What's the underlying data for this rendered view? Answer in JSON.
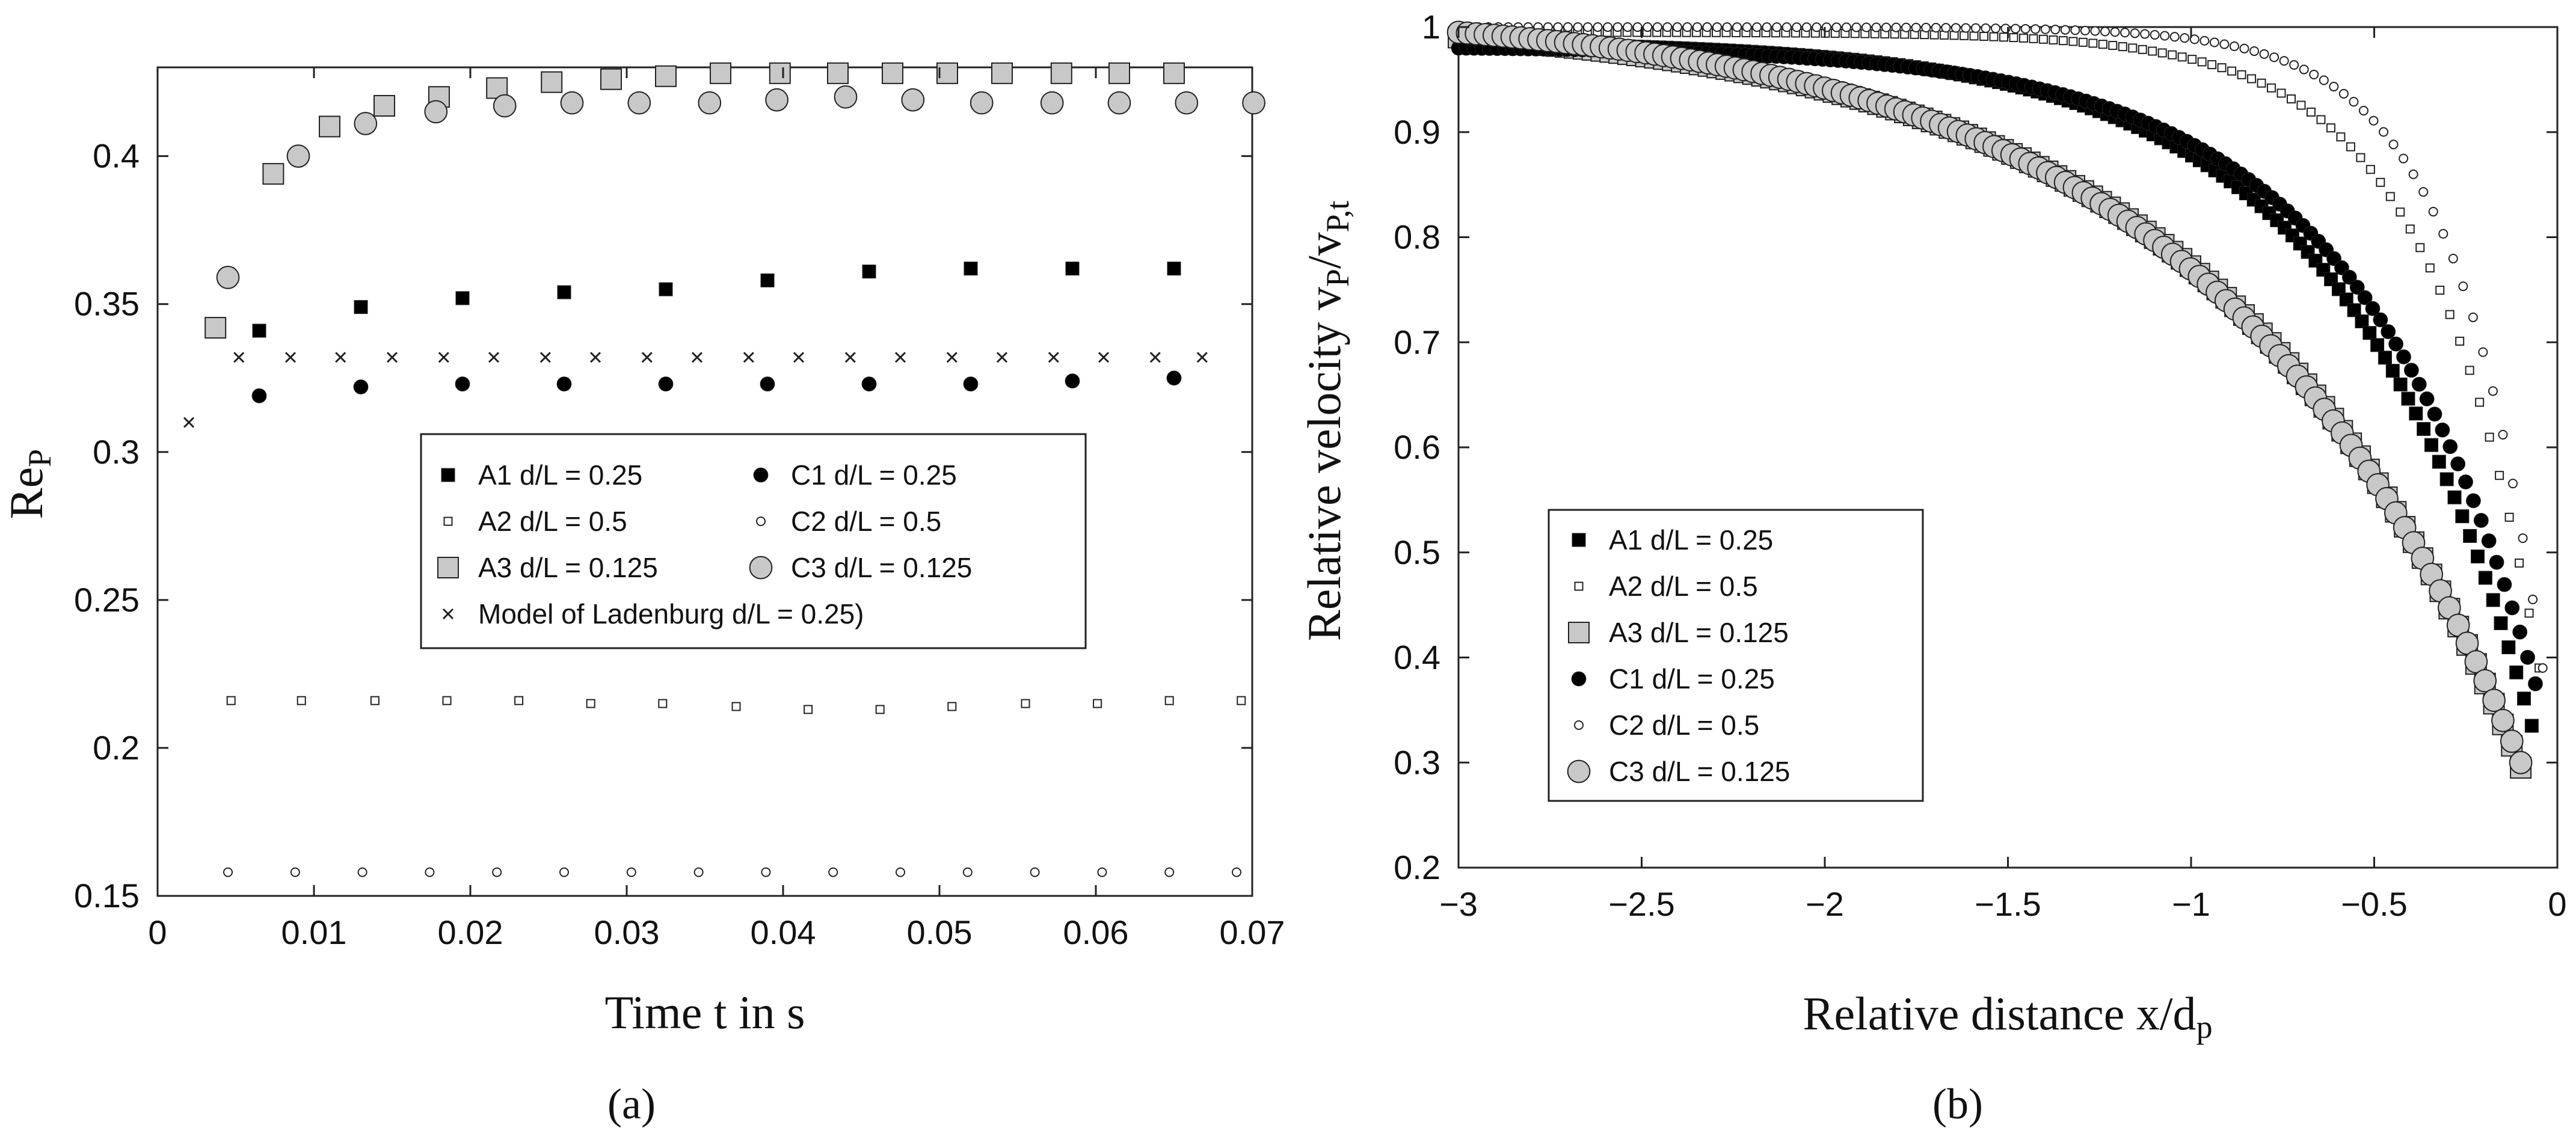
{
  "colors": {
    "black": "#000000",
    "light_gray": "#c8c8c8",
    "white": "#ffffff",
    "axis": "#222222"
  },
  "chart_data": [
    {
      "panel_label": "(a)",
      "type": "scatter",
      "xlabel": "Time t in s",
      "ylabel": "Re",
      "ylabel_sub": "P",
      "xlim": [
        0,
        0.07
      ],
      "ylim": [
        0.15,
        0.43
      ],
      "xticks": [
        "0",
        "0.01",
        "0.02",
        "0.03",
        "0.04",
        "0.05",
        "0.06",
        "0.07"
      ],
      "yticks": [
        "0.15",
        "0.2",
        "0.25",
        "0.3",
        "0.35",
        "0.4"
      ],
      "xtick_values": [
        0,
        0.01,
        0.02,
        0.03,
        0.04,
        0.05,
        0.06,
        0.07
      ],
      "ytick_values": [
        0.15,
        0.2,
        0.25,
        0.3,
        0.35,
        0.4
      ],
      "grid": false,
      "legend_position": "center-right",
      "legend_columns": 2,
      "series": [
        {
          "name": "A1 d/L = 0.25",
          "marker": "square",
          "fill": "black",
          "size": "medium",
          "x": [
            0.0065,
            0.013,
            0.0195,
            0.026,
            0.0325,
            0.039,
            0.0455,
            0.052,
            0.0585,
            0.065
          ],
          "y": [
            0.341,
            0.349,
            0.352,
            0.354,
            0.355,
            0.358,
            0.361,
            0.362,
            0.362,
            0.362
          ]
        },
        {
          "name": "C1 d/L = 0.25",
          "marker": "circle",
          "fill": "black",
          "size": "medium",
          "x": [
            0.0065,
            0.013,
            0.0195,
            0.026,
            0.0325,
            0.039,
            0.0455,
            0.052,
            0.0585,
            0.065
          ],
          "y": [
            0.319,
            0.322,
            0.323,
            0.323,
            0.323,
            0.323,
            0.323,
            0.323,
            0.324,
            0.325
          ]
        },
        {
          "name": "A2 d/L = 0.5",
          "marker": "square",
          "fill": "white",
          "size": "small",
          "x": [
            0.0047,
            0.0092,
            0.0139,
            0.0185,
            0.0231,
            0.0277,
            0.0323,
            0.037,
            0.0416,
            0.0462,
            0.0508,
            0.0555,
            0.0601,
            0.0647,
            0.0693
          ],
          "y": [
            0.216,
            0.216,
            0.216,
            0.216,
            0.216,
            0.215,
            0.215,
            0.214,
            0.213,
            0.213,
            0.214,
            0.215,
            0.215,
            0.216,
            0.216
          ]
        },
        {
          "name": "C2 d/L = 0.5",
          "marker": "circle",
          "fill": "white",
          "size": "small",
          "x": [
            0.0045,
            0.0088,
            0.0131,
            0.0174,
            0.0217,
            0.026,
            0.0303,
            0.0346,
            0.0389,
            0.0432,
            0.0475,
            0.0518,
            0.0561,
            0.0604,
            0.0647,
            0.069
          ],
          "y": [
            0.158,
            0.158,
            0.158,
            0.158,
            0.158,
            0.158,
            0.158,
            0.158,
            0.158,
            0.158,
            0.158,
            0.158,
            0.158,
            0.158,
            0.158,
            0.158
          ]
        },
        {
          "name": "A3 d/L = 0.125",
          "marker": "square",
          "fill": "gray",
          "size": "large",
          "x": [
            0.0037,
            0.0074,
            0.011,
            0.0145,
            0.018,
            0.0217,
            0.0252,
            0.029,
            0.0325,
            0.036,
            0.0398,
            0.0435,
            0.047,
            0.0505,
            0.054,
            0.0578,
            0.0615,
            0.065
          ],
          "y": [
            0.342,
            0.394,
            0.41,
            0.417,
            0.42,
            0.423,
            0.425,
            0.426,
            0.427,
            0.428,
            0.428,
            0.428,
            0.428,
            0.428,
            0.428,
            0.428,
            0.428,
            0.428
          ]
        },
        {
          "name": "C3 d/L = 0.125",
          "marker": "circle",
          "fill": "gray",
          "size": "large",
          "x": [
            0.0045,
            0.009,
            0.0133,
            0.0178,
            0.0222,
            0.0265,
            0.0308,
            0.0353,
            0.0396,
            0.044,
            0.0483,
            0.0527,
            0.0572,
            0.0615,
            0.0658,
            0.0701
          ],
          "y": [
            0.359,
            0.4,
            0.411,
            0.415,
            0.417,
            0.418,
            0.418,
            0.418,
            0.419,
            0.42,
            0.419,
            0.418,
            0.418,
            0.418,
            0.418,
            0.418
          ]
        },
        {
          "name": "Model of Ladenburg d/L = 0.25)",
          "marker": "x",
          "fill": "black",
          "size": "small",
          "x": [
            0.002,
            0.0052,
            0.0085,
            0.0117,
            0.015,
            0.0183,
            0.0215,
            0.0248,
            0.028,
            0.0313,
            0.0345,
            0.0378,
            0.041,
            0.0443,
            0.0475,
            0.0508,
            0.054,
            0.0573,
            0.0605,
            0.0638,
            0.0668
          ],
          "y": [
            0.31,
            0.332,
            0.332,
            0.332,
            0.332,
            0.332,
            0.332,
            0.332,
            0.332,
            0.332,
            0.332,
            0.332,
            0.332,
            0.332,
            0.332,
            0.332,
            0.332,
            0.332,
            0.332,
            0.332,
            0.332
          ]
        }
      ],
      "legend_order": [
        0,
        1,
        2,
        3,
        4,
        5,
        6
      ]
    },
    {
      "panel_label": "(b)",
      "type": "scatter",
      "xlabel": "Relative distance x/d",
      "xlabel_sub": "p",
      "ylabel": "Relative velocity v",
      "ylabel_sub1": "P",
      "ylabel_mid": "/v",
      "ylabel_sub2": "P,t",
      "xlim": [
        -3,
        0
      ],
      "ylim": [
        0.2,
        1
      ],
      "xticks": [
        "−3",
        "−2.5",
        "−2",
        "−1.5",
        "−1",
        "−0.5",
        "0"
      ],
      "yticks": [
        "0.2",
        "0.3",
        "0.4",
        "0.5",
        "0.6",
        "0.7",
        "0.8",
        "0.9",
        "1"
      ],
      "xtick_values": [
        -3,
        -2.5,
        -2,
        -1.5,
        -1,
        -0.5,
        0
      ],
      "ytick_values": [
        0.2,
        0.3,
        0.4,
        0.5,
        0.6,
        0.7,
        0.8,
        0.9,
        1
      ],
      "grid": false,
      "legend_position": "bottom-left",
      "legend_columns": 1,
      "series": [
        {
          "name": "A1 d/L = 0.25",
          "marker": "square",
          "fill": "black",
          "size": "medium",
          "curve": {
            "x0": -3.0,
            "x1": -0.07,
            "y0": 0.985,
            "y1": 0.335,
            "k": 0.52
          }
        },
        {
          "name": "A2 d/L = 0.5",
          "marker": "square",
          "fill": "white",
          "size": "small",
          "curve": {
            "x0": -3.0,
            "x1": -0.05,
            "y0": 0.995,
            "y1": 0.39,
            "k": 0.3
          }
        },
        {
          "name": "A3 d/L = 0.125",
          "marker": "square",
          "fill": "gray",
          "size": "large",
          "curve": {
            "x0": -3.0,
            "x1": -0.1,
            "y0": 0.99,
            "y1": 0.295,
            "k": 0.82
          }
        },
        {
          "name": "C1 d/L = 0.25",
          "marker": "circle",
          "fill": "black",
          "size": "medium",
          "curve": {
            "x0": -3.0,
            "x1": -0.06,
            "y0": 0.98,
            "y1": 0.375,
            "k": 0.5
          }
        },
        {
          "name": "C2 d/L = 0.5",
          "marker": "circle",
          "fill": "white",
          "size": "small",
          "curve": {
            "x0": -3.0,
            "x1": -0.04,
            "y0": 1.0,
            "y1": 0.39,
            "k": 0.24
          }
        },
        {
          "name": "C3 d/L = 0.125",
          "marker": "circle",
          "fill": "gray",
          "size": "large",
          "curve": {
            "x0": -3.0,
            "x1": -0.1,
            "y0": 0.995,
            "y1": 0.3,
            "k": 0.85
          }
        }
      ]
    }
  ]
}
